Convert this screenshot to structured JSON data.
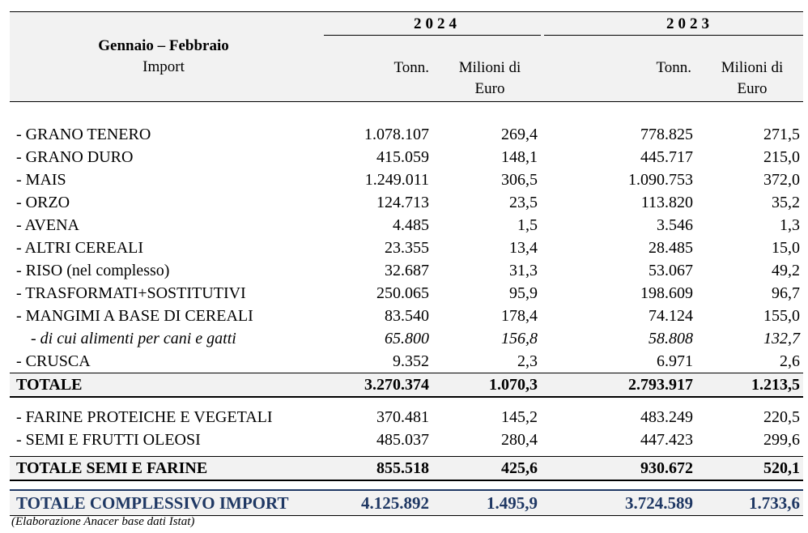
{
  "header": {
    "period": "Gennaio – Febbraio",
    "subtitle": "Import",
    "year_a": "2024",
    "year_b": "2023",
    "col_tonn": "Tonn.",
    "col_eur_line1": "Milioni di",
    "col_eur_line2": "Euro"
  },
  "rows": [
    {
      "label": "- GRANO TENERO",
      "t24": "1.078.107",
      "e24": "269,4",
      "t23": "778.825",
      "e23": "271,5"
    },
    {
      "label": "- GRANO DURO",
      "t24": "415.059",
      "e24": "148,1",
      "t23": "445.717",
      "e23": "215,0"
    },
    {
      "label": "- MAIS",
      "t24": "1.249.011",
      "e24": "306,5",
      "t23": "1.090.753",
      "e23": "372,0"
    },
    {
      "label": "- ORZO",
      "t24": "124.713",
      "e24": "23,5",
      "t23": "113.820",
      "e23": "35,2"
    },
    {
      "label": "- AVENA",
      "t24": "4.485",
      "e24": "1,5",
      "t23": "3.546",
      "e23": "1,3"
    },
    {
      "label": "- ALTRI CEREALI",
      "t24": "23.355",
      "e24": "13,4",
      "t23": "28.485",
      "e23": "15,0"
    },
    {
      "label": "- RISO (nel complesso)",
      "t24": "32.687",
      "e24": "31,3",
      "t23": "53.067",
      "e23": "49,2"
    },
    {
      "label": "- TRASFORMATI+SOSTITUTIVI",
      "t24": "250.065",
      "e24": "95,9",
      "t23": "198.609",
      "e23": "96,7"
    },
    {
      "label": "- MANGIMI A BASE DI CEREALI",
      "t24": "83.540",
      "e24": "178,4",
      "t23": "74.124",
      "e23": "155,0"
    },
    {
      "label": "- di cui alimenti per cani e gatti",
      "t24": "65.800",
      "e24": "156,8",
      "t23": "58.808",
      "e23": "132,7"
    },
    {
      "label": "- CRUSCA",
      "t24": "9.352",
      "e24": "2,3",
      "t23": "6.971",
      "e23": "2,6"
    }
  ],
  "totale": {
    "label": "TOTALE",
    "t24": "3.270.374",
    "e24": "1.070,3",
    "t23": "2.793.917",
    "e23": "1.213,5"
  },
  "rows2": [
    {
      "label": "- FARINE PROTEICHE E VEGETALI",
      "t24": "370.481",
      "e24": "145,2",
      "t23": "483.249",
      "e23": "220,5"
    },
    {
      "label": "- SEMI E FRUTTI OLEOSI",
      "t24": "485.037",
      "e24": "280,4",
      "t23": "447.423",
      "e23": "299,6"
    }
  ],
  "totale_semi": {
    "label": "TOTALE SEMI E FARINE",
    "t24": "855.518",
    "e24": "425,6",
    "t23": "930.672",
    "e23": "520,1"
  },
  "totale_complessivo": {
    "label": "TOTALE COMPLESSIVO IMPORT",
    "t24": "4.125.892",
    "e24": "1.495,9",
    "t23": "3.724.589",
    "e23": "1.733,6"
  },
  "footer": "(Elaborazione Anacer base dati Istat)",
  "colors": {
    "header_bg": "#f2f2f2",
    "total_complessivo_text": "#1f3864"
  }
}
